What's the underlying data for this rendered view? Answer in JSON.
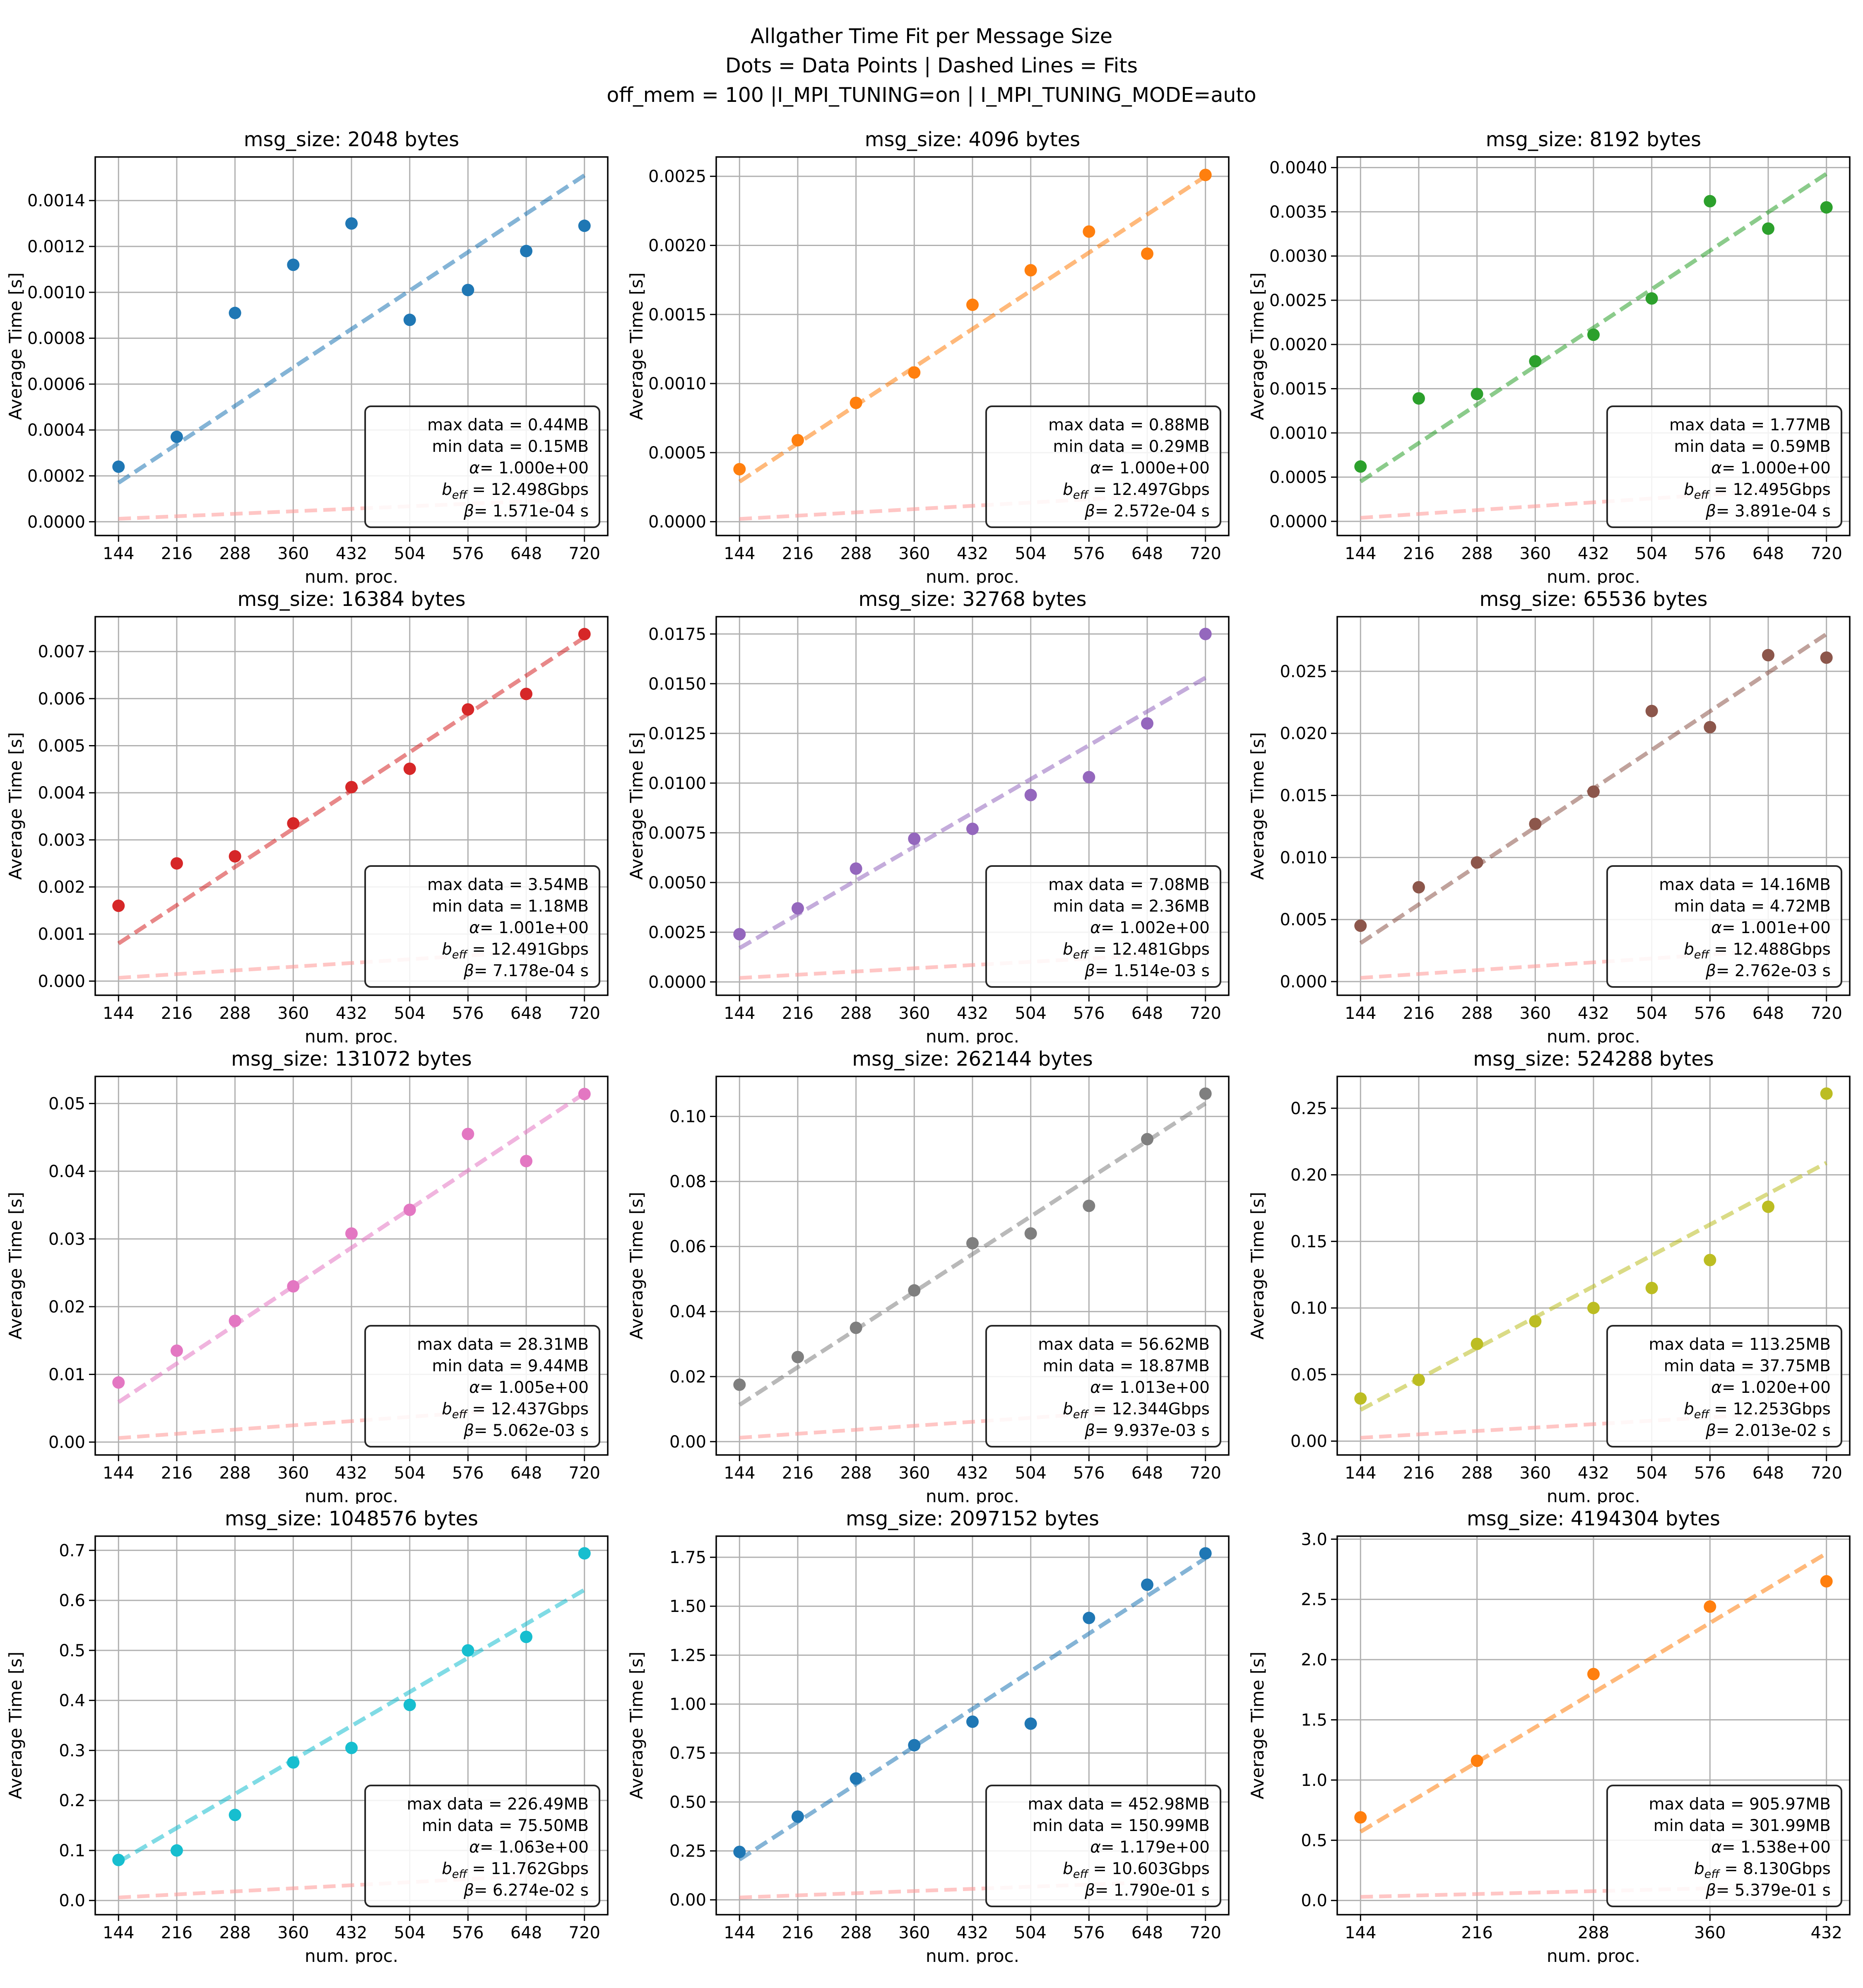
{
  "suptitle": {
    "line1": "Allgather Time Fit per Message Size",
    "line2": "Dots = Data Points | Dashed Lines = Fits",
    "line3": "off_mem = 100 |I_MPI_TUNING=on | I_MPI_TUNING_MODE=auto"
  },
  "axis": {
    "xlabel": "num. proc.",
    "ylabel": "Average Time [s]"
  },
  "stats_labels": {
    "max": "max data",
    "min": "min data",
    "alpha": "α",
    "beff_base": "b",
    "beff_sub": "eff",
    "beta": "β"
  },
  "style": {
    "baseline_color": "#ff9896",
    "grid_color": "#b0b0b0",
    "spine_color": "#000000",
    "stats_box_border": "#262626",
    "stats_box_fill": "#ffffff"
  },
  "chart_data": [
    {
      "type": "scatter",
      "msg_size": 2048,
      "title": "msg_size: 2048 bytes",
      "color": "#1f77b4",
      "x": [
        144,
        216,
        288,
        360,
        432,
        504,
        576,
        648,
        720
      ],
      "y": [
        0.00024,
        0.00037,
        0.00091,
        0.00112,
        0.0013,
        0.00088,
        0.00101,
        0.00118,
        0.00129
      ],
      "fit": {
        "x": [
          144,
          720
        ],
        "y": [
          0.00017,
          0.00151
        ]
      },
      "baseline": {
        "x": [
          144,
          720
        ],
        "y": [
          1.3e-05,
          0.0001
        ]
      },
      "xticks": [
        144,
        216,
        288,
        360,
        432,
        504,
        576,
        648,
        720
      ],
      "xlim": [
        115.2,
        748.8
      ],
      "ylim": [
        -6e-05,
        0.00159
      ],
      "yticks": {
        "min": 0,
        "max": 0.0014,
        "step": 0.0002,
        "decimals": 4
      },
      "stats": {
        "max_data": "0.44MB",
        "min_data": "0.15MB",
        "alpha": "1.000e+00",
        "b_eff": "12.498Gbps",
        "beta": "1.571e-04 s"
      }
    },
    {
      "type": "scatter",
      "msg_size": 4096,
      "title": "msg_size: 4096 bytes",
      "color": "#ff7f0e",
      "x": [
        144,
        216,
        288,
        360,
        432,
        504,
        576,
        648,
        720
      ],
      "y": [
        0.00038,
        0.00059,
        0.00086,
        0.00108,
        0.00157,
        0.00182,
        0.0021,
        0.00194,
        0.00251
      ],
      "fit": {
        "x": [
          144,
          720
        ],
        "y": [
          0.00029,
          0.0025
        ]
      },
      "baseline": {
        "x": [
          144,
          720
        ],
        "y": [
          2e-05,
          0.00021
        ]
      },
      "xticks": [
        144,
        216,
        288,
        360,
        432,
        504,
        576,
        648,
        720
      ],
      "xlim": [
        115.2,
        748.8
      ],
      "ylim": [
        -0.0001,
        0.00264
      ],
      "yticks": {
        "min": 0,
        "max": 0.0025,
        "step": 0.0005,
        "decimals": 4
      },
      "stats": {
        "max_data": "0.88MB",
        "min_data": "0.29MB",
        "alpha": "1.000e+00",
        "b_eff": "12.497Gbps",
        "beta": "2.572e-04 s"
      }
    },
    {
      "type": "scatter",
      "msg_size": 8192,
      "title": "msg_size: 8192 bytes",
      "color": "#2ca02c",
      "x": [
        144,
        216,
        288,
        360,
        432,
        504,
        576,
        648,
        720
      ],
      "y": [
        0.00062,
        0.00139,
        0.00144,
        0.00181,
        0.00211,
        0.00252,
        0.00362,
        0.00331,
        0.00355
      ],
      "fit": {
        "x": [
          144,
          720
        ],
        "y": [
          0.00045,
          0.00393
        ]
      },
      "baseline": {
        "x": [
          144,
          720
        ],
        "y": [
          4e-05,
          0.00039
        ]
      },
      "xticks": [
        144,
        216,
        288,
        360,
        432,
        504,
        576,
        648,
        720
      ],
      "xlim": [
        115.2,
        748.8
      ],
      "ylim": [
        -0.00016,
        0.00412
      ],
      "yticks": {
        "min": 0,
        "max": 0.004,
        "step": 0.0005,
        "decimals": 4
      },
      "stats": {
        "max_data": "1.77MB",
        "min_data": "0.59MB",
        "alpha": "1.000e+00",
        "b_eff": "12.495Gbps",
        "beta": "3.891e-04 s"
      }
    },
    {
      "type": "scatter",
      "msg_size": 16384,
      "title": "msg_size: 16384 bytes",
      "color": "#d62728",
      "x": [
        144,
        216,
        288,
        360,
        432,
        504,
        576,
        648,
        720
      ],
      "y": [
        0.0016,
        0.0025,
        0.00265,
        0.00335,
        0.00412,
        0.00451,
        0.00577,
        0.0061,
        0.00737
      ],
      "fit": {
        "x": [
          144,
          720
        ],
        "y": [
          0.0008,
          0.0073
        ]
      },
      "baseline": {
        "x": [
          144,
          720
        ],
        "y": [
          7e-05,
          0.0007
        ]
      },
      "xticks": [
        144,
        216,
        288,
        360,
        432,
        504,
        576,
        648,
        720
      ],
      "xlim": [
        115.2,
        748.8
      ],
      "ylim": [
        -0.0003,
        0.00774
      ],
      "yticks": {
        "min": 0,
        "max": 0.007,
        "step": 0.001,
        "decimals": 3
      },
      "stats": {
        "max_data": "3.54MB",
        "min_data": "1.18MB",
        "alpha": "1.001e+00",
        "b_eff": "12.491Gbps",
        "beta": "7.178e-04 s"
      }
    },
    {
      "type": "scatter",
      "msg_size": 32768,
      "title": "msg_size: 32768 bytes",
      "color": "#9467bd",
      "x": [
        144,
        216,
        288,
        360,
        432,
        504,
        576,
        648,
        720
      ],
      "y": [
        0.0024,
        0.0037,
        0.0057,
        0.0072,
        0.0077,
        0.0094,
        0.0103,
        0.013,
        0.0175
      ],
      "fit": {
        "x": [
          144,
          720
        ],
        "y": [
          0.0017,
          0.0153
        ]
      },
      "baseline": {
        "x": [
          144,
          720
        ],
        "y": [
          0.0002,
          0.0015
        ]
      },
      "xticks": [
        144,
        216,
        288,
        360,
        432,
        504,
        576,
        648,
        720
      ],
      "xlim": [
        115.2,
        748.8
      ],
      "ylim": [
        -0.00067,
        0.01837
      ],
      "yticks": {
        "min": 0,
        "max": 0.0175,
        "step": 0.0025,
        "decimals": 4
      },
      "stats": {
        "max_data": "7.08MB",
        "min_data": "2.36MB",
        "alpha": "1.002e+00",
        "b_eff": "12.481Gbps",
        "beta": "1.514e-03 s"
      }
    },
    {
      "type": "scatter",
      "msg_size": 65536,
      "title": "msg_size: 65536 bytes",
      "color": "#8c564b",
      "x": [
        144,
        216,
        288,
        360,
        432,
        504,
        576,
        648,
        720
      ],
      "y": [
        0.0045,
        0.0076,
        0.0096,
        0.0127,
        0.0153,
        0.0218,
        0.0205,
        0.0263,
        0.0261
      ],
      "fit": {
        "x": [
          144,
          720
        ],
        "y": [
          0.0031,
          0.028
        ]
      },
      "baseline": {
        "x": [
          144,
          720
        ],
        "y": [
          0.0003,
          0.0028
        ]
      },
      "xticks": [
        144,
        216,
        288,
        360,
        432,
        504,
        576,
        648,
        720
      ],
      "xlim": [
        115.2,
        748.8
      ],
      "ylim": [
        -0.0011,
        0.0294
      ],
      "yticks": {
        "min": 0,
        "max": 0.025,
        "step": 0.005,
        "decimals": 3
      },
      "stats": {
        "max_data": "14.16MB",
        "min_data": "4.72MB",
        "alpha": "1.001e+00",
        "b_eff": "12.488Gbps",
        "beta": "2.762e-03 s"
      }
    },
    {
      "type": "scatter",
      "msg_size": 131072,
      "title": "msg_size: 131072 bytes",
      "color": "#e377c2",
      "x": [
        144,
        216,
        288,
        360,
        432,
        504,
        576,
        648,
        720
      ],
      "y": [
        0.0088,
        0.0135,
        0.0179,
        0.023,
        0.0308,
        0.0343,
        0.0455,
        0.0415,
        0.0514
      ],
      "fit": {
        "x": [
          144,
          720
        ],
        "y": [
          0.0059,
          0.0515
        ]
      },
      "baseline": {
        "x": [
          144,
          720
        ],
        "y": [
          0.0006,
          0.0056
        ]
      },
      "xticks": [
        144,
        216,
        288,
        360,
        432,
        504,
        576,
        648,
        720
      ],
      "xlim": [
        115.2,
        748.8
      ],
      "ylim": [
        -0.0019,
        0.054
      ],
      "yticks": {
        "min": 0,
        "max": 0.05,
        "step": 0.01,
        "decimals": 2
      },
      "stats": {
        "max_data": "28.31MB",
        "min_data": "9.44MB",
        "alpha": "1.005e+00",
        "b_eff": "12.437Gbps",
        "beta": "5.062e-03 s"
      }
    },
    {
      "type": "scatter",
      "msg_size": 262144,
      "title": "msg_size: 262144 bytes",
      "color": "#7f7f7f",
      "x": [
        144,
        216,
        288,
        360,
        432,
        504,
        576,
        648,
        720
      ],
      "y": [
        0.0175,
        0.026,
        0.035,
        0.0465,
        0.061,
        0.064,
        0.0725,
        0.093,
        0.107
      ],
      "fit": {
        "x": [
          144,
          720
        ],
        "y": [
          0.0113,
          0.104
        ]
      },
      "baseline": {
        "x": [
          144,
          720
        ],
        "y": [
          0.0012,
          0.011
        ]
      },
      "xticks": [
        144,
        216,
        288,
        360,
        432,
        504,
        576,
        648,
        720
      ],
      "xlim": [
        115.2,
        748.8
      ],
      "ylim": [
        -0.0041,
        0.1123
      ],
      "yticks": {
        "min": 0,
        "max": 0.1,
        "step": 0.02,
        "decimals": 2
      },
      "stats": {
        "max_data": "56.62MB",
        "min_data": "18.87MB",
        "alpha": "1.013e+00",
        "b_eff": "12.344Gbps",
        "beta": "9.937e-03 s"
      }
    },
    {
      "type": "scatter",
      "msg_size": 524288,
      "title": "msg_size: 524288 bytes",
      "color": "#bcbd22",
      "x": [
        144,
        216,
        288,
        360,
        432,
        504,
        576,
        648,
        720
      ],
      "y": [
        0.032,
        0.046,
        0.073,
        0.09,
        0.1,
        0.115,
        0.136,
        0.176,
        0.261
      ],
      "fit": {
        "x": [
          144,
          720
        ],
        "y": [
          0.0235,
          0.209
        ]
      },
      "baseline": {
        "x": [
          144,
          720
        ],
        "y": [
          0.0025,
          0.023
        ]
      },
      "xticks": [
        144,
        216,
        288,
        360,
        432,
        504,
        576,
        648,
        720
      ],
      "xlim": [
        115.2,
        748.8
      ],
      "ylim": [
        -0.0104,
        0.2739
      ],
      "yticks": {
        "min": 0,
        "max": 0.25,
        "step": 0.05,
        "decimals": 2
      },
      "stats": {
        "max_data": "113.25MB",
        "min_data": "37.75MB",
        "alpha": "1.020e+00",
        "b_eff": "12.253Gbps",
        "beta": "2.013e-02 s"
      }
    },
    {
      "type": "scatter",
      "msg_size": 1048576,
      "title": "msg_size: 1048576 bytes",
      "color": "#17becf",
      "x": [
        144,
        216,
        288,
        360,
        432,
        504,
        576,
        648,
        720
      ],
      "y": [
        0.081,
        0.1,
        0.171,
        0.276,
        0.305,
        0.391,
        0.5,
        0.527,
        0.694
      ],
      "fit": {
        "x": [
          144,
          720
        ],
        "y": [
          0.077,
          0.621
        ]
      },
      "baseline": {
        "x": [
          144,
          720
        ],
        "y": [
          0.006,
          0.055
        ]
      },
      "xticks": [
        144,
        216,
        288,
        360,
        432,
        504,
        576,
        648,
        720
      ],
      "xlim": [
        115.2,
        748.8
      ],
      "ylim": [
        -0.0284,
        0.7284
      ],
      "yticks": {
        "min": 0,
        "max": 0.7,
        "step": 0.1,
        "decimals": 1
      },
      "stats": {
        "max_data": "226.49MB",
        "min_data": "75.50MB",
        "alpha": "1.063e+00",
        "b_eff": "11.762Gbps",
        "beta": "6.274e-02 s"
      }
    },
    {
      "type": "scatter",
      "msg_size": 2097152,
      "title": "msg_size: 2097152 bytes",
      "color": "#1f77b4",
      "x": [
        144,
        216,
        288,
        360,
        432,
        504,
        576,
        648,
        720
      ],
      "y": [
        0.245,
        0.425,
        0.62,
        0.79,
        0.91,
        0.9,
        1.44,
        1.61,
        1.77
      ],
      "fit": {
        "x": [
          144,
          720
        ],
        "y": [
          0.206,
          1.745
        ]
      },
      "baseline": {
        "x": [
          144,
          720
        ],
        "y": [
          0.012,
          0.1
        ]
      },
      "xticks": [
        144,
        216,
        288,
        360,
        432,
        504,
        576,
        648,
        720
      ],
      "xlim": [
        115.2,
        748.8
      ],
      "ylim": [
        -0.0759,
        1.858
      ],
      "yticks": {
        "min": 0,
        "max": 1.75,
        "step": 0.25,
        "decimals": 2
      },
      "stats": {
        "max_data": "452.98MB",
        "min_data": "150.99MB",
        "alpha": "1.179e+00",
        "b_eff": "10.603Gbps",
        "beta": "1.790e-01 s"
      }
    },
    {
      "type": "scatter",
      "msg_size": 4194304,
      "title": "msg_size: 4194304 bytes",
      "color": "#ff7f0e",
      "x": [
        144,
        216,
        288,
        360,
        432
      ],
      "y": [
        0.69,
        1.16,
        1.88,
        2.44,
        2.65
      ],
      "fit": {
        "x": [
          144,
          432
        ],
        "y": [
          0.571,
          2.882
        ]
      },
      "baseline": {
        "x": [
          144,
          432
        ],
        "y": [
          0.03,
          0.125
        ]
      },
      "xticks": [
        144,
        216,
        288,
        360,
        432
      ],
      "xlim": [
        129.6,
        446.4
      ],
      "ylim": [
        -0.118,
        3.025
      ],
      "yticks": {
        "min": 0,
        "max": 3.0,
        "step": 0.5,
        "decimals": 1
      },
      "stats": {
        "max_data": "905.97MB",
        "min_data": "301.99MB",
        "alpha": "1.538e+00",
        "b_eff": "8.130Gbps",
        "beta": "5.379e-01 s"
      }
    }
  ]
}
